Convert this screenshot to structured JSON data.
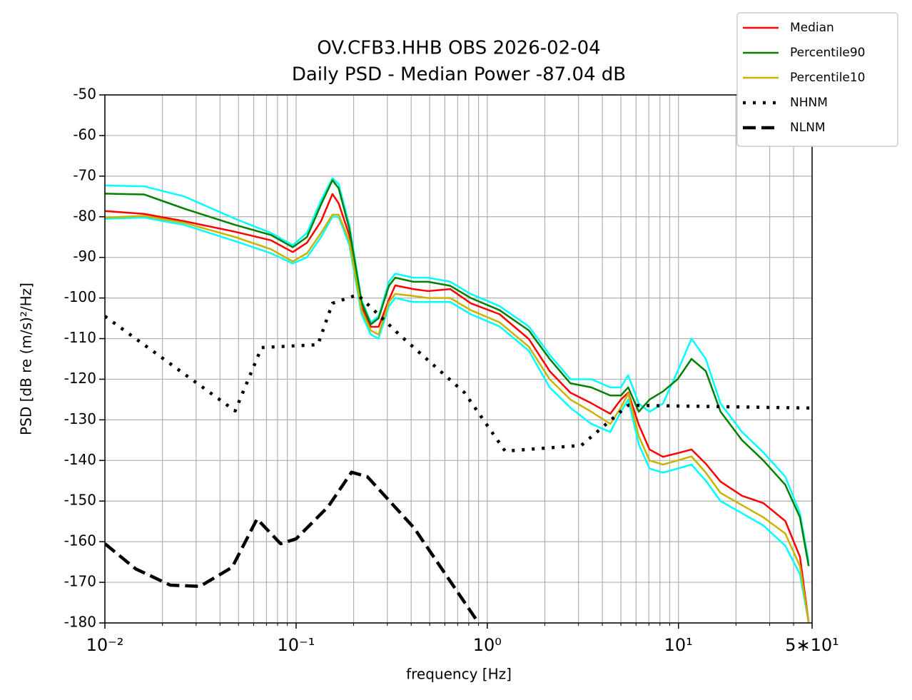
{
  "chart_data": {
    "type": "line",
    "title": "OV.CFB3.HHB OBS 2026-02-04",
    "subtitle": "Daily PSD - Median Power -87.04 dB",
    "x_label": "frequency [Hz]",
    "y_label": "PSD [dB re (m/s)²/Hz]",
    "xscale": "log",
    "xlim": [
      0.01,
      50
    ],
    "ylim": [
      -180,
      -50
    ],
    "xticks": [
      {
        "value": 0.01,
        "label": "10⁻²"
      },
      {
        "value": 0.1,
        "label": "10⁻¹"
      },
      {
        "value": 1,
        "label": "10⁰"
      },
      {
        "value": 10,
        "label": "10¹"
      },
      {
        "value": 50,
        "label": "5∗10¹"
      }
    ],
    "yticks": [
      -50,
      -60,
      -70,
      -80,
      -90,
      -100,
      -110,
      -120,
      -130,
      -140,
      -150,
      -160,
      -170,
      -180
    ],
    "grid": true,
    "legend": "upper right",
    "series": [
      {
        "color": "#00ffff",
        "linestyle": "solid",
        "x": [
          0.01,
          0.016,
          0.026,
          0.048,
          0.074,
          0.096,
          0.114,
          0.135,
          0.155,
          0.167,
          0.19,
          0.22,
          0.246,
          0.27,
          0.306,
          0.33,
          0.41,
          0.49,
          0.64,
          0.82,
          1.16,
          1.65,
          2.12,
          2.72,
          3.5,
          4.4,
          5.0,
          5.46,
          6.2,
          7.06,
          8.3,
          9.9,
          11.7,
          13.9,
          16.6,
          21.5,
          27.8,
          36.2,
          43.2,
          48
        ],
        "values": [
          -72.3,
          -72.5,
          -75,
          -80.5,
          -84,
          -87,
          -84,
          -76,
          -70.5,
          -72,
          -82,
          -100.5,
          -106,
          -104.5,
          -96,
          -94,
          -95,
          -95,
          -96,
          -99,
          -102,
          -107,
          -114,
          -120,
          -120,
          -122,
          -122,
          -119,
          -126,
          -128,
          -126,
          -118,
          -110,
          -115,
          -126,
          -133,
          -138,
          -144,
          -153,
          -165
        ]
      },
      {
        "color": "#00ffff",
        "linestyle": "solid",
        "x": [
          0.01,
          0.016,
          0.026,
          0.048,
          0.074,
          0.096,
          0.114,
          0.135,
          0.155,
          0.167,
          0.19,
          0.22,
          0.246,
          0.27,
          0.306,
          0.33,
          0.41,
          0.49,
          0.64,
          0.82,
          1.16,
          1.65,
          2.12,
          2.72,
          3.5,
          4.4,
          5.0,
          5.46,
          6.2,
          7.06,
          8.3,
          9.9,
          11.7,
          13.9,
          16.6,
          21.5,
          27.8,
          36.2,
          43.2,
          48
        ],
        "values": [
          -80.5,
          -80.2,
          -82,
          -86,
          -89,
          -91.5,
          -90,
          -85,
          -80,
          -80,
          -87,
          -104,
          -109,
          -110,
          -102,
          -100,
          -101,
          -101,
          -101,
          -104,
          -107,
          -113,
          -122,
          -127,
          -131,
          -133,
          -128,
          -125,
          -136,
          -142,
          -143,
          -142,
          -141,
          -145,
          -150,
          -153,
          -156,
          -161,
          -168,
          -180
        ]
      },
      {
        "name": "Median",
        "color": "#ff0000",
        "linestyle": "solid",
        "x": [
          0.01,
          0.016,
          0.026,
          0.048,
          0.074,
          0.096,
          0.114,
          0.135,
          0.155,
          0.167,
          0.19,
          0.22,
          0.246,
          0.27,
          0.306,
          0.33,
          0.41,
          0.49,
          0.64,
          0.82,
          1.16,
          1.65,
          2.12,
          2.72,
          3.5,
          4.4,
          5.0,
          5.46,
          6.2,
          7.06,
          8.3,
          9.9,
          11.7,
          13.9,
          16.6,
          21.5,
          27.8,
          36.2,
          43.2,
          48
        ],
        "values": [
          -78.6,
          -79.3,
          -81.1,
          -83.7,
          -85.8,
          -88.7,
          -86.4,
          -81.1,
          -74.4,
          -76.7,
          -84.6,
          -102.2,
          -107.1,
          -107.1,
          -100.4,
          -96.9,
          -97.8,
          -98.3,
          -97.8,
          -101.3,
          -104,
          -110.1,
          -118,
          -123.3,
          -125.9,
          -128.5,
          -125,
          -123.3,
          -131.2,
          -137.3,
          -139.1,
          -138.2,
          -137.3,
          -140.8,
          -145.2,
          -148.7,
          -150.5,
          -154.9,
          -163.7,
          -180
        ]
      },
      {
        "name": "Percentile90",
        "color": "#008000",
        "linestyle": "solid",
        "x": [
          0.01,
          0.016,
          0.026,
          0.048,
          0.074,
          0.096,
          0.114,
          0.135,
          0.155,
          0.167,
          0.19,
          0.22,
          0.246,
          0.27,
          0.306,
          0.33,
          0.41,
          0.49,
          0.64,
          0.82,
          1.16,
          1.65,
          2.12,
          2.72,
          3.5,
          4.4,
          5.0,
          5.46,
          6.2,
          7.06,
          8.3,
          9.9,
          11.7,
          13.9,
          16.6,
          21.5,
          27.8,
          36.2,
          43.2,
          48
        ],
        "values": [
          -74.3,
          -74.5,
          -78,
          -82,
          -84.5,
          -87.5,
          -85,
          -77,
          -71,
          -73,
          -83,
          -101,
          -106.5,
          -105,
          -97,
          -95,
          -96,
          -96,
          -97,
          -100,
          -103,
          -108,
          -115,
          -121,
          -122,
          -124,
          -124,
          -122,
          -128,
          -125,
          -123,
          -120,
          -115,
          -118,
          -128,
          -135,
          -140,
          -146,
          -154,
          -166
        ]
      },
      {
        "name": "Percentile10",
        "color": "#c8b400",
        "linestyle": "solid",
        "x": [
          0.01,
          0.016,
          0.026,
          0.048,
          0.074,
          0.096,
          0.114,
          0.135,
          0.155,
          0.167,
          0.19,
          0.22,
          0.246,
          0.27,
          0.306,
          0.33,
          0.41,
          0.49,
          0.64,
          0.82,
          1.16,
          1.65,
          2.12,
          2.72,
          3.5,
          4.4,
          5.0,
          5.46,
          6.2,
          7.06,
          8.3,
          9.9,
          11.7,
          13.9,
          16.6,
          21.5,
          27.8,
          36.2,
          43.2,
          48
        ],
        "values": [
          -80.2,
          -79.8,
          -81.5,
          -85,
          -88,
          -91,
          -89,
          -84,
          -79.5,
          -79.5,
          -86,
          -103,
          -108,
          -109,
          -101,
          -99,
          -99.5,
          -100,
          -100,
          -103,
          -106,
          -112,
          -120,
          -125,
          -128,
          -131,
          -127,
          -123.5,
          -134,
          -140,
          -141,
          -140,
          -139,
          -143,
          -148,
          -151,
          -154,
          -158,
          -166,
          -180
        ]
      },
      {
        "name": "NHNM",
        "color": "#000000",
        "linestyle": "dotted",
        "x": [
          0.01,
          0.048,
          0.066,
          0.13,
          0.155,
          0.21,
          0.35,
          0.76,
          1.24,
          3.1,
          5.46,
          50
        ],
        "values": [
          -104.5,
          -127.8,
          -112.2,
          -111.5,
          -101.3,
          -99.2,
          -109.2,
          -123.3,
          -137.7,
          -136.3,
          -126.4,
          -127.1
        ]
      },
      {
        "name": "NLNM",
        "color": "#000000",
        "linestyle": "dashed",
        "x": [
          0.01,
          0.0145,
          0.022,
          0.0314,
          0.0463,
          0.0625,
          0.083,
          0.1,
          0.147,
          0.195,
          0.236,
          0.414,
          0.9
        ],
        "values": [
          -160.5,
          -166.7,
          -170.7,
          -171,
          -166.3,
          -154.4,
          -160.5,
          -159.3,
          -151.4,
          -142.9,
          -144,
          -156.6,
          -180
        ]
      }
    ]
  }
}
